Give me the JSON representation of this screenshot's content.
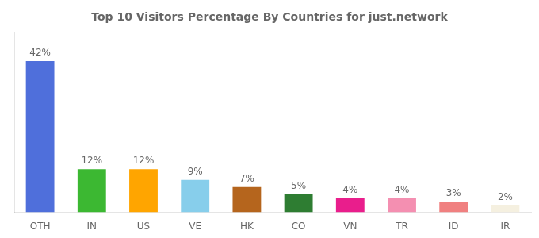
{
  "chart_data": {
    "type": "bar",
    "title": "Top 10 Visitors Percentage By Countries for just.network",
    "categories": [
      "OTH",
      "IN",
      "US",
      "VE",
      "HK",
      "CO",
      "VN",
      "TR",
      "ID",
      "IR"
    ],
    "values": [
      42,
      12,
      12,
      9,
      7,
      5,
      4,
      4,
      3,
      2
    ],
    "value_labels": [
      "42%",
      "12%",
      "12%",
      "9%",
      "7%",
      "5%",
      "4%",
      "4%",
      "3%",
      "2%"
    ],
    "colors": [
      "#4f6fdb",
      "#3cb832",
      "#ffa500",
      "#87ceeb",
      "#b5651d",
      "#2e7d32",
      "#e91e8c",
      "#f48fb1",
      "#f08080",
      "#f5f0e0"
    ],
    "ylim": [
      0,
      50
    ],
    "grid": false,
    "data_labels": true,
    "tick_labels": "x"
  }
}
